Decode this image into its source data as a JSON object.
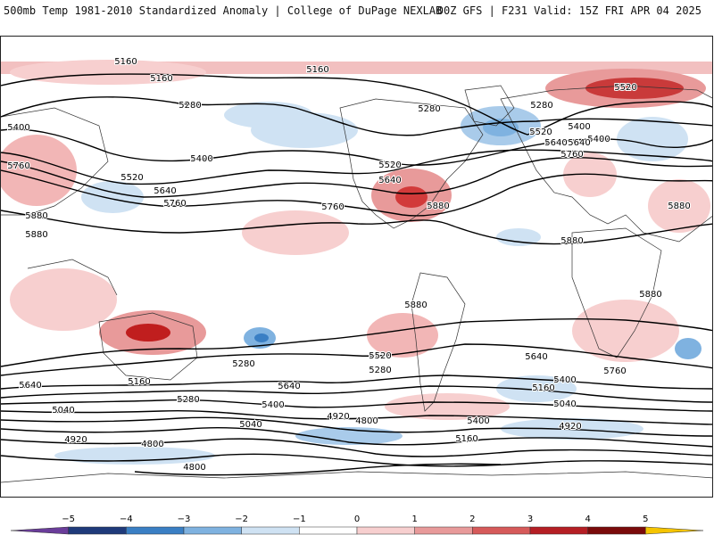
{
  "header": {
    "left": "500mb Temp 1981-2010 Standardized Anomaly | College of DuPage NEXLAB",
    "right": "00Z GFS | F231 Valid: 15Z FRI APR 04 2025"
  },
  "colors": {
    "contour": "#000000",
    "coast": "#333333",
    "anomaly_scale": [
      {
        "value": -5,
        "color": "#6a3d9a"
      },
      {
        "value": -4,
        "color": "#1f3a7a"
      },
      {
        "value": -3,
        "color": "#3a7fc4"
      },
      {
        "value": -2,
        "color": "#7fb2e0"
      },
      {
        "value": -1,
        "color": "#cfe2f3"
      },
      {
        "value": 0,
        "color": "#ffffff"
      },
      {
        "value": 1,
        "color": "#f7cfcf"
      },
      {
        "value": 2,
        "color": "#e89a9a"
      },
      {
        "value": 3,
        "color": "#d65a5a"
      },
      {
        "value": 4,
        "color": "#b51e24"
      },
      {
        "value": 5,
        "color": "#7a0a0a"
      },
      {
        "value": 6,
        "color": "#f5c400"
      }
    ]
  },
  "colorbar": {
    "ticks": [
      "−5",
      "−4",
      "−3",
      "−2",
      "−1",
      "0",
      "1",
      "2",
      "3",
      "4",
      "5"
    ]
  },
  "contour_labels": [
    "5160",
    "5160",
    "5160",
    "5280",
    "5280",
    "5280",
    "5400",
    "5400",
    "5400",
    "5400",
    "5520",
    "5520",
    "5520",
    "5520",
    "5640",
    "5640",
    "5640",
    "5640",
    "5760",
    "5760",
    "5760",
    "5760",
    "5880",
    "5880",
    "5880",
    "5880",
    "5880",
    "5880",
    "5880",
    "5160",
    "5280",
    "5400",
    "5520",
    "5280",
    "5640",
    "5160",
    "5040",
    "5040",
    "5040",
    "4920",
    "4920",
    "4920",
    "4800",
    "4800",
    "4800",
    "5400",
    "5160",
    "5280",
    "5400",
    "5640",
    "5640",
    "5760"
  ]
}
